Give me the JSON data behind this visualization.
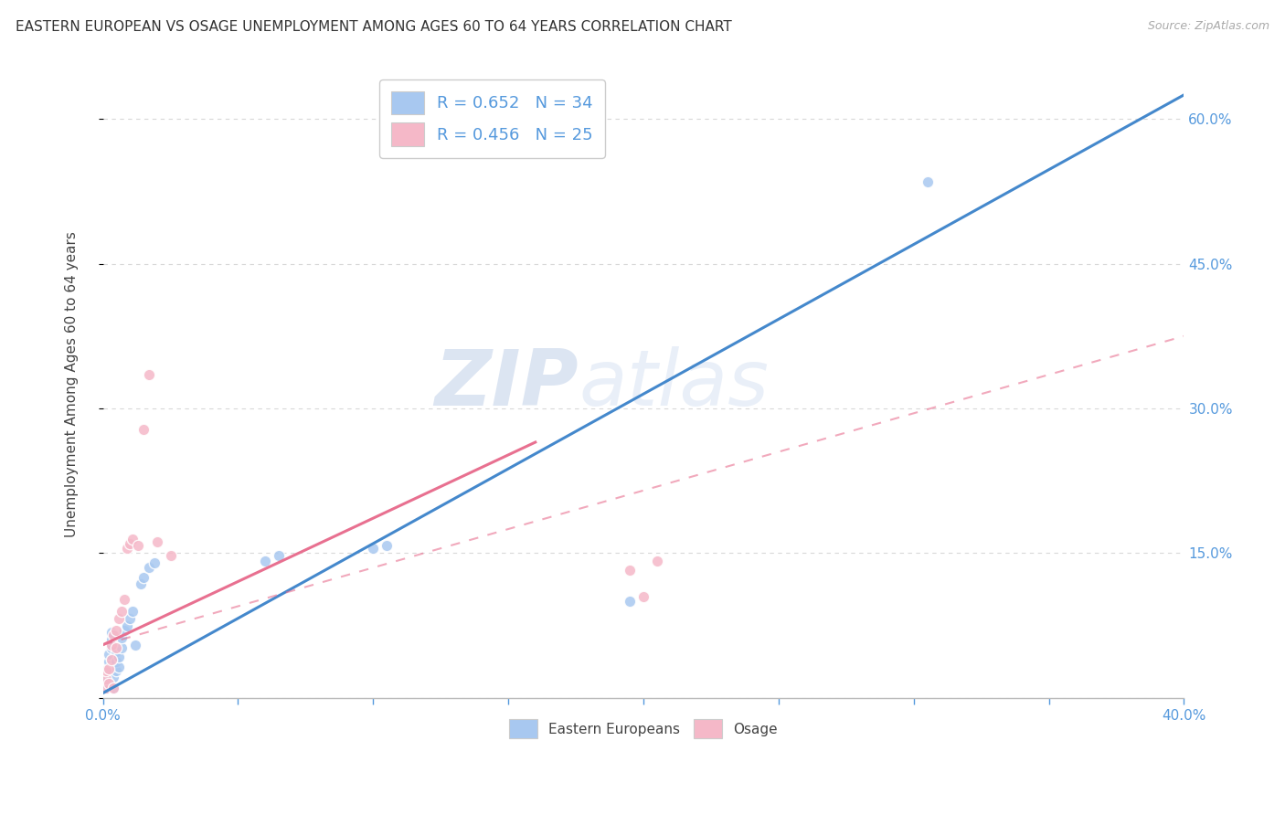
{
  "title": "EASTERN EUROPEAN VS OSAGE UNEMPLOYMENT AMONG AGES 60 TO 64 YEARS CORRELATION CHART",
  "source": "Source: ZipAtlas.com",
  "ylabel_left": "Unemployment Among Ages 60 to 64 years",
  "xlim": [
    0.0,
    0.4
  ],
  "ylim": [
    0.0,
    0.65
  ],
  "xtick_vals": [
    0.0,
    0.05,
    0.1,
    0.15,
    0.2,
    0.25,
    0.3,
    0.35,
    0.4
  ],
  "xtick_labels_show": [
    "0.0%",
    "",
    "",
    "",
    "",
    "",
    "",
    "",
    "40.0%"
  ],
  "ytick_vals": [
    0.0,
    0.15,
    0.3,
    0.45,
    0.6
  ],
  "ytick_labels": [
    "",
    "15.0%",
    "30.0%",
    "45.0%",
    "60.0%"
  ],
  "background_color": "#ffffff",
  "grid_color": "#d8d8d8",
  "blue_scatter_color": "#a8c8f0",
  "pink_scatter_color": "#f5b8c8",
  "blue_line_color": "#4488cc",
  "pink_line_color": "#e87090",
  "tick_color": "#5599dd",
  "title_color": "#333333",
  "label_color": "#444444",
  "legend_text_color": "#5599dd",
  "legend_blue_label": "R = 0.652   N = 34",
  "legend_pink_label": "R = 0.456   N = 25",
  "label_blue": "Eastern Europeans",
  "label_pink": "Osage",
  "watermark_zip": "ZIP",
  "watermark_atlas": "atlas",
  "title_fontsize": 11,
  "tick_fontsize": 11,
  "legend_fontsize": 13,
  "ylabel_fontsize": 11,
  "blue_x": [
    0.001,
    0.001,
    0.001,
    0.002,
    0.002,
    0.002,
    0.002,
    0.003,
    0.003,
    0.003,
    0.004,
    0.004,
    0.005,
    0.005,
    0.005,
    0.006,
    0.006,
    0.007,
    0.007,
    0.008,
    0.009,
    0.01,
    0.011,
    0.012,
    0.014,
    0.015,
    0.017,
    0.019,
    0.06,
    0.065,
    0.1,
    0.105,
    0.195,
    0.305
  ],
  "blue_y": [
    0.01,
    0.015,
    0.02,
    0.025,
    0.03,
    0.038,
    0.045,
    0.052,
    0.06,
    0.068,
    0.01,
    0.022,
    0.028,
    0.038,
    0.048,
    0.032,
    0.042,
    0.052,
    0.062,
    0.07,
    0.075,
    0.082,
    0.09,
    0.055,
    0.118,
    0.125,
    0.135,
    0.14,
    0.142,
    0.148,
    0.155,
    0.158,
    0.1,
    0.535
  ],
  "pink_x": [
    0.001,
    0.001,
    0.001,
    0.002,
    0.002,
    0.003,
    0.003,
    0.004,
    0.004,
    0.005,
    0.005,
    0.006,
    0.007,
    0.008,
    0.009,
    0.01,
    0.011,
    0.013,
    0.015,
    0.017,
    0.02,
    0.025,
    0.195,
    0.2,
    0.205
  ],
  "pink_y": [
    0.01,
    0.02,
    0.028,
    0.015,
    0.03,
    0.04,
    0.055,
    0.065,
    0.01,
    0.052,
    0.07,
    0.082,
    0.09,
    0.102,
    0.155,
    0.16,
    0.165,
    0.158,
    0.278,
    0.335,
    0.162,
    0.148,
    0.132,
    0.105,
    0.142
  ],
  "blue_line_x0": 0.0,
  "blue_line_y0": 0.005,
  "blue_line_x1": 0.4,
  "blue_line_y1": 0.625,
  "pink_line_solid_x0": 0.0,
  "pink_line_solid_y0": 0.055,
  "pink_line_solid_x1": 0.16,
  "pink_line_solid_y1": 0.265,
  "pink_line_dash_x0": 0.0,
  "pink_line_dash_y0": 0.055,
  "pink_line_dash_x1": 0.4,
  "pink_line_dash_y1": 0.375
}
